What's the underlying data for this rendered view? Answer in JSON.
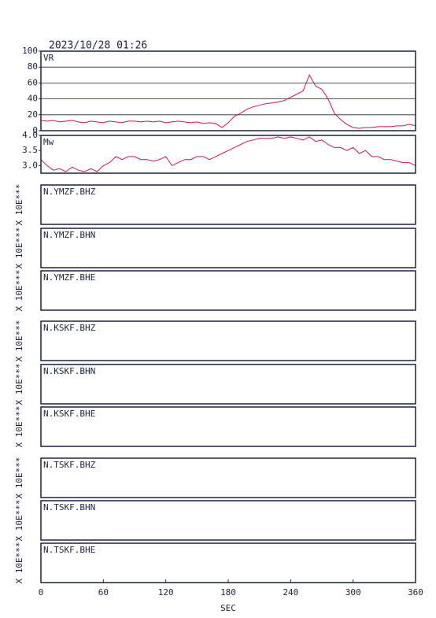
{
  "title": "2023/10/28 01:26",
  "chart_data": [
    {
      "type": "line",
      "label": "VR",
      "color": "#d2144e",
      "x": [
        0,
        6,
        12,
        18,
        24,
        30,
        36,
        42,
        48,
        54,
        60,
        66,
        72,
        78,
        84,
        90,
        96,
        102,
        108,
        114,
        120,
        126,
        132,
        138,
        144,
        150,
        156,
        162,
        168,
        174,
        180,
        186,
        192,
        198,
        204,
        210,
        216,
        222,
        228,
        234,
        240,
        246,
        252,
        258,
        264,
        270,
        276,
        282,
        288,
        294,
        300,
        306,
        312,
        318,
        324,
        330,
        336,
        342,
        348,
        354,
        360
      ],
      "values": [
        13,
        12,
        13,
        11,
        12,
        13,
        11,
        10,
        12,
        11,
        10,
        12,
        11,
        10,
        12,
        12,
        11,
        12,
        11,
        12,
        10,
        11,
        12,
        11,
        10,
        11,
        9,
        10,
        9,
        4,
        10,
        18,
        22,
        27,
        30,
        32,
        34,
        35,
        36,
        38,
        42,
        46,
        50,
        70,
        56,
        52,
        40,
        22,
        14,
        8,
        4,
        3,
        4,
        4,
        5,
        5,
        5,
        6,
        6,
        8,
        6
      ],
      "xlim": [
        0,
        360
      ],
      "ylim": [
        0,
        100
      ],
      "yticks": [
        0,
        20,
        40,
        60,
        80,
        100
      ],
      "grid": true
    },
    {
      "type": "line",
      "label": "Mw",
      "color": "#d2144e",
      "x": [
        0,
        6,
        12,
        18,
        24,
        30,
        36,
        42,
        48,
        54,
        60,
        66,
        72,
        78,
        84,
        90,
        96,
        102,
        108,
        114,
        120,
        126,
        132,
        138,
        144,
        150,
        156,
        162,
        168,
        174,
        180,
        186,
        192,
        198,
        204,
        210,
        216,
        222,
        228,
        234,
        240,
        246,
        252,
        258,
        264,
        270,
        276,
        282,
        288,
        294,
        300,
        306,
        312,
        318,
        324,
        330,
        336,
        342,
        348,
        354,
        360
      ],
      "values": [
        3.2,
        3.0,
        2.85,
        2.9,
        2.8,
        2.95,
        2.85,
        2.8,
        2.9,
        2.8,
        3.0,
        3.1,
        3.3,
        3.2,
        3.3,
        3.3,
        3.2,
        3.2,
        3.15,
        3.2,
        3.3,
        3.0,
        3.1,
        3.2,
        3.2,
        3.3,
        3.3,
        3.2,
        3.3,
        3.4,
        3.5,
        3.6,
        3.7,
        3.8,
        3.85,
        3.9,
        3.9,
        3.9,
        3.95,
        3.9,
        3.95,
        3.9,
        3.85,
        3.95,
        3.8,
        3.85,
        3.7,
        3.6,
        3.6,
        3.5,
        3.6,
        3.4,
        3.5,
        3.3,
        3.3,
        3.2,
        3.2,
        3.15,
        3.1,
        3.1,
        3.0
      ],
      "xlim": [
        0,
        360
      ],
      "ylim": [
        2.75,
        4
      ],
      "yticks": [
        {
          "value": 3,
          "label": "3.0"
        },
        3.5,
        {
          "value": 4,
          "label": "4.0"
        }
      ],
      "grid": false
    }
  ],
  "waveforms": {
    "xlim": [
      0,
      360
    ],
    "xticks": [
      0,
      60,
      120,
      180,
      240,
      300,
      360
    ],
    "xlabel": "SEC",
    "panels": [
      {
        "label": "N.YMZF.BHZ",
        "ylabel": "X 10E***"
      },
      {
        "label": "N.YMZF.BHN",
        "ylabel": "X 10E***"
      },
      {
        "label": "N.YMZF.BHE",
        "ylabel": "X 10E***"
      },
      {
        "label": "N.KSKF.BHZ",
        "ylabel": "X 10E***"
      },
      {
        "label": "N.KSKF.BHN",
        "ylabel": "X 10E***"
      },
      {
        "label": "N.KSKF.BHE",
        "ylabel": "X 10E***"
      },
      {
        "label": "N.TSKF.BHZ",
        "ylabel": "X 10E***"
      },
      {
        "label": "N.TSKF.BHN",
        "ylabel": "X 10E***"
      },
      {
        "label": "N.TSKF.BHE",
        "ylabel": "X 10E***"
      }
    ]
  }
}
